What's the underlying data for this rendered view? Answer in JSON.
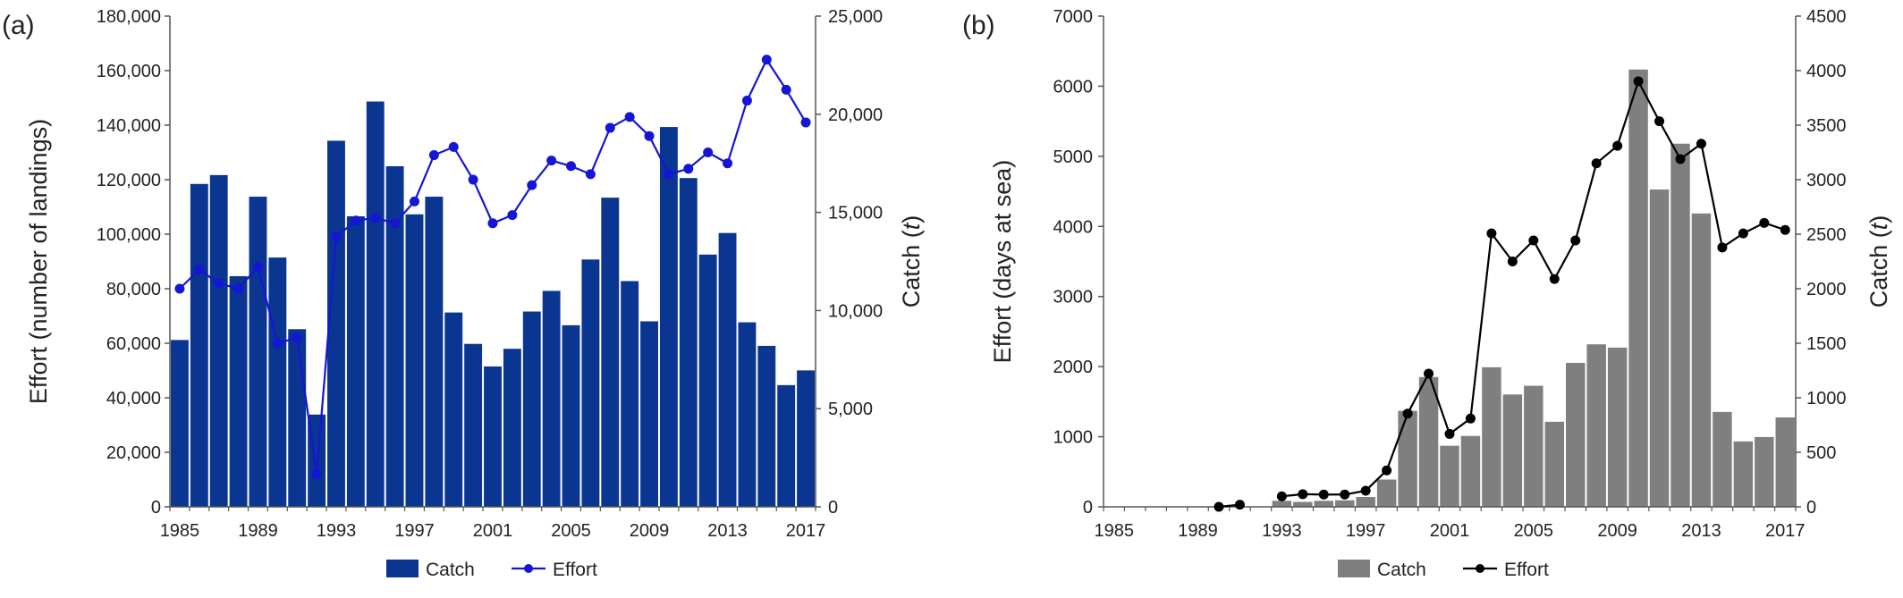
{
  "colors": {
    "catch_a": "#0A3591",
    "effort_a": "#1515D6",
    "catch_b": "#7F7F7F",
    "effort_b": "#000000",
    "axis": "#555555"
  },
  "chart_data": [
    {
      "panel_label": "(a)",
      "type": "bar+line",
      "years": [
        1985,
        1986,
        1987,
        1988,
        1989,
        1990,
        1991,
        1992,
        1993,
        1994,
        1995,
        1996,
        1997,
        1998,
        1999,
        2000,
        2001,
        2002,
        2003,
        2004,
        2005,
        2006,
        2007,
        2008,
        2009,
        2010,
        2011,
        2012,
        2013,
        2014,
        2015,
        2016,
        2017
      ],
      "x_ticks": [
        "1985",
        "1989",
        "1993",
        "1997",
        "2001",
        "2005",
        "2009",
        "2013",
        "2017"
      ],
      "left_axis": {
        "label": "Effort (number of landings)",
        "min": 0,
        "max": 180000,
        "step": 20000,
        "ticks": [
          "0",
          "20,000",
          "40,000",
          "60,000",
          "80,000",
          "100,000",
          "120,000",
          "140,000",
          "160,000",
          "180,000"
        ]
      },
      "right_axis": {
        "label_main": "Catch (",
        "label_italic": "t",
        "label_close": ")",
        "min": 0,
        "max": 25000,
        "step": 5000,
        "ticks": [
          "0",
          "5,000",
          "10,000",
          "15,000",
          "20,000",
          "25,000"
        ]
      },
      "series": [
        {
          "name": "Catch",
          "kind": "bar",
          "axis": "right",
          "values": [
            8500,
            16450,
            16900,
            11750,
            15800,
            12700,
            9050,
            4700,
            18650,
            14800,
            20650,
            17350,
            14900,
            15800,
            9900,
            8300,
            7150,
            8050,
            9950,
            11000,
            9250,
            12600,
            15750,
            11500,
            9450,
            19350,
            16750,
            12850,
            13950,
            9400,
            8200,
            6200,
            6950
          ]
        },
        {
          "name": "Effort",
          "kind": "line",
          "axis": "left",
          "values": [
            80000,
            87000,
            82000,
            80000,
            88000,
            60000,
            62000,
            12000,
            99000,
            105000,
            106000,
            104000,
            112000,
            129000,
            132000,
            120000,
            104000,
            107000,
            118000,
            127000,
            125000,
            122000,
            139000,
            143000,
            136000,
            122000,
            124000,
            130000,
            126000,
            149000,
            164000,
            153000,
            141000
          ]
        }
      ],
      "legend": [
        "Catch",
        "Effort"
      ]
    },
    {
      "panel_label": "(b)",
      "type": "bar+line",
      "years": [
        1985,
        1986,
        1987,
        1988,
        1989,
        1990,
        1991,
        1992,
        1993,
        1994,
        1995,
        1996,
        1997,
        1998,
        1999,
        2000,
        2001,
        2002,
        2003,
        2004,
        2005,
        2006,
        2007,
        2008,
        2009,
        2010,
        2011,
        2012,
        2013,
        2014,
        2015,
        2016,
        2017
      ],
      "x_ticks": [
        "1985",
        "1989",
        "1993",
        "1997",
        "2001",
        "2005",
        "2009",
        "2013",
        "2017"
      ],
      "left_axis": {
        "label": "Effort (days at sea)",
        "min": 0,
        "max": 7000,
        "step": 1000,
        "ticks": [
          "0",
          "1000",
          "2000",
          "3000",
          "4000",
          "5000",
          "6000",
          "7000"
        ]
      },
      "right_axis": {
        "label_main": "Catch (",
        "label_italic": "t",
        "label_close": ")",
        "min": 0,
        "max": 4500,
        "step": 500,
        "ticks": [
          "0",
          "500",
          "1000",
          "1500",
          "2000",
          "2500",
          "3000",
          "3500",
          "4000",
          "4500"
        ]
      },
      "series": [
        {
          "name": "Catch",
          "kind": "bar",
          "axis": "right",
          "values": [
            null,
            null,
            null,
            null,
            null,
            null,
            null,
            null,
            55,
            45,
            55,
            60,
            90,
            250,
            880,
            1190,
            560,
            650,
            1280,
            1030,
            1110,
            780,
            1320,
            1490,
            1460,
            4010,
            2910,
            3330,
            2690,
            870,
            600,
            640,
            820
          ]
        },
        {
          "name": "Effort",
          "kind": "line",
          "axis": "left",
          "values": [
            null,
            null,
            null,
            null,
            null,
            0,
            30,
            null,
            150,
            180,
            175,
            175,
            230,
            520,
            1330,
            1900,
            1040,
            1260,
            3900,
            3500,
            3800,
            3250,
            3800,
            4900,
            5150,
            6070,
            5500,
            4960,
            5180,
            3700,
            3900,
            4050,
            3950
          ],
          "segments_break_after_index": 6
        }
      ],
      "legend": [
        "Catch",
        "Effort"
      ]
    }
  ]
}
